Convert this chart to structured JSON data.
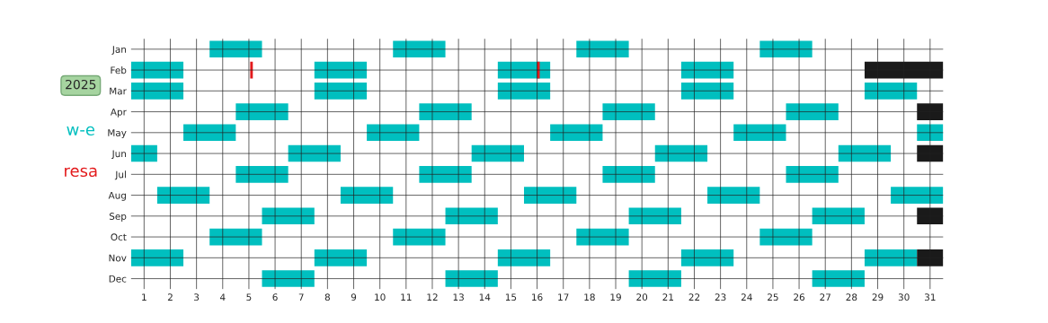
{
  "chart_data": {
    "type": "bar",
    "orientation": "horizontal",
    "title": "2025",
    "categories": [
      "Jan",
      "Feb",
      "Mar",
      "Apr",
      "May",
      "Jun",
      "Jul",
      "Aug",
      "Sep",
      "Oct",
      "Nov",
      "Dec"
    ],
    "series": [
      {
        "name": "w-e",
        "color": "#00bfbf",
        "base": [
          3.5,
          0.5,
          0.5,
          4.5,
          2.5,
          0.5,
          4.5,
          1.5,
          5.5,
          3.5,
          0.5,
          5.5
        ],
        "values": [
          2,
          2,
          2,
          2,
          2,
          1,
          2,
          2,
          2,
          2,
          2,
          2
        ]
      },
      {
        "color": "#00bfbf",
        "base": [
          10.5,
          7.5,
          7.5,
          11.5,
          9.5,
          6.5,
          11.5,
          8.5,
          12.5,
          10.5,
          7.5,
          12.5
        ],
        "values": [
          2,
          2,
          2,
          2,
          2,
          2,
          2,
          2,
          2,
          2,
          2,
          2
        ]
      },
      {
        "color": "#00bfbf",
        "base": [
          17.5,
          14.5,
          14.5,
          18.5,
          16.5,
          13.5,
          18.5,
          15.5,
          19.5,
          17.5,
          14.5,
          19.5
        ],
        "values": [
          2,
          2,
          2,
          2,
          2,
          2,
          2,
          2,
          2,
          2,
          2,
          2
        ]
      },
      {
        "color": "#00bfbf",
        "base": [
          24.5,
          21.5,
          21.5,
          25.5,
          23.5,
          20.5,
          25.5,
          22.5,
          26.5,
          24.5,
          21.5,
          26.5
        ],
        "values": [
          2,
          2,
          2,
          2,
          2,
          2,
          2,
          2,
          2,
          2,
          2,
          2
        ]
      },
      {
        "color": "#00bfbf",
        "base": [
          null,
          null,
          28.5,
          null,
          30.5,
          27.5,
          null,
          29.5,
          null,
          null,
          28.5,
          null
        ],
        "values": [
          null,
          null,
          2,
          null,
          1,
          2,
          null,
          2,
          null,
          null,
          2,
          null
        ]
      },
      {
        "color": "#1a1a1a",
        "base": [
          null,
          28.5,
          null,
          30.5,
          null,
          30.5,
          null,
          null,
          30.5,
          null,
          30.5,
          null
        ],
        "values": [
          null,
          3,
          null,
          1,
          null,
          1,
          null,
          null,
          1,
          null,
          1,
          null
        ]
      },
      {
        "name": "resa",
        "color": "#e31a1c",
        "base": [
          null,
          5.05,
          null,
          null,
          null,
          null,
          null,
          null,
          null,
          null,
          null,
          null
        ],
        "values": [
          null,
          0.1,
          null,
          null,
          null,
          null,
          null,
          null,
          null,
          null,
          null,
          null
        ]
      },
      {
        "color": "#e31a1c",
        "base": [
          null,
          16.0,
          null,
          null,
          null,
          null,
          null,
          null,
          null,
          null,
          null,
          null
        ],
        "values": [
          null,
          0.1,
          null,
          null,
          null,
          null,
          null,
          null,
          null,
          null,
          null,
          null
        ]
      }
    ],
    "xlim": [
      0.5,
      31.5
    ],
    "xticks": [
      1,
      2,
      3,
      4,
      5,
      6,
      7,
      8,
      9,
      10,
      11,
      12,
      13,
      14,
      15,
      16,
      17,
      18,
      19,
      20,
      21,
      22,
      23,
      24,
      25,
      26,
      27,
      28,
      29,
      30,
      31
    ],
    "grid": true,
    "legend": "left"
  }
}
